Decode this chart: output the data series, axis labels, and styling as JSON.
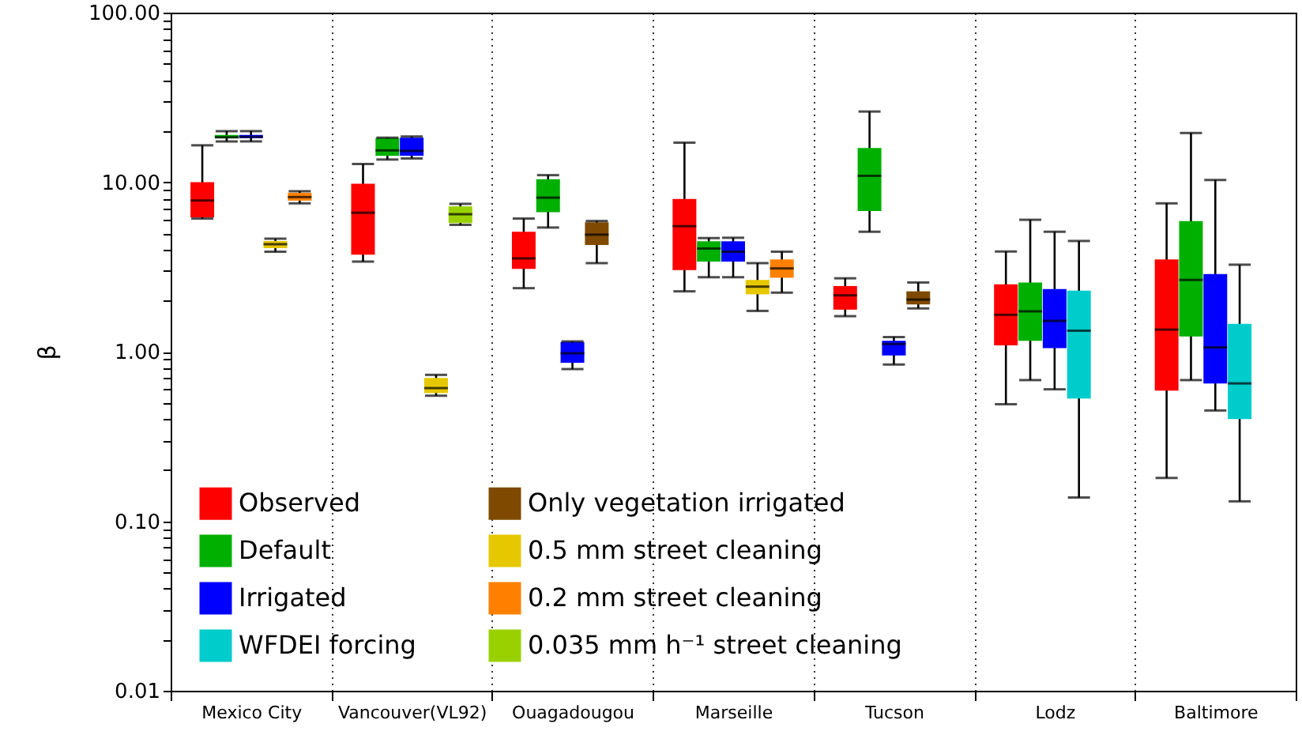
{
  "chart_data": {
    "type": "box",
    "ylabel": "β",
    "log": true,
    "grid": "x",
    "legend": "bottom left",
    "categories": [
      "Mexico City",
      "Vancouver(VL92)",
      "Ouagadougou",
      "Marseille",
      "Tucson",
      "Lodz",
      "Baltimore"
    ],
    "ylim": [
      0.01,
      100
    ],
    "yticks": [
      {
        "value": 0.01,
        "label": "0.01"
      },
      {
        "value": 0.02,
        "label": null
      },
      {
        "value": 0.03,
        "label": null
      },
      {
        "value": 0.04,
        "label": null
      },
      {
        "value": 0.05,
        "label": null
      },
      {
        "value": 0.06,
        "label": null
      },
      {
        "value": 0.07,
        "label": null
      },
      {
        "value": 0.08,
        "label": null
      },
      {
        "value": 0.09,
        "label": null
      },
      {
        "value": 0.1,
        "label": "0.10"
      },
      {
        "value": 0.2,
        "label": null
      },
      {
        "value": 0.3,
        "label": null
      },
      {
        "value": 0.4,
        "label": null
      },
      {
        "value": 0.5,
        "label": null
      },
      {
        "value": 0.6,
        "label": null
      },
      {
        "value": 0.7,
        "label": null
      },
      {
        "value": 0.8,
        "label": null
      },
      {
        "value": 0.9,
        "label": null
      },
      {
        "value": 1,
        "label": "1.00"
      },
      {
        "value": 2,
        "label": null
      },
      {
        "value": 3,
        "label": null
      },
      {
        "value": 4,
        "label": null
      },
      {
        "value": 5,
        "label": null
      },
      {
        "value": 6,
        "label": null
      },
      {
        "value": 7,
        "label": null
      },
      {
        "value": 8,
        "label": null
      },
      {
        "value": 9,
        "label": null
      },
      {
        "value": 10,
        "label": "10.00"
      },
      {
        "value": 20,
        "label": null
      },
      {
        "value": 30,
        "label": null
      },
      {
        "value": 40,
        "label": null
      },
      {
        "value": 50,
        "label": null
      },
      {
        "value": 60,
        "label": null
      },
      {
        "value": 70,
        "label": null
      },
      {
        "value": 80,
        "label": null
      },
      {
        "value": 90,
        "label": null
      },
      {
        "value": 100,
        "label": "100.00"
      }
    ],
    "series": [
      {
        "name": "Observed",
        "color": "#ff0000",
        "boxes": [
          {
            "low": 6.1,
            "q1": 6.2,
            "median": 7.8,
            "q3": 10.0,
            "high": 16.5
          },
          {
            "low": 3.4,
            "q1": 3.73,
            "median": 6.6,
            "q3": 9.8,
            "high": 12.8
          },
          {
            "low": 2.37,
            "q1": 3.08,
            "median": 3.55,
            "q3": 5.1,
            "high": 6.1
          },
          {
            "low": 2.27,
            "q1": 3.03,
            "median": 5.5,
            "q3": 7.95,
            "high": 17.1
          },
          {
            "low": 1.62,
            "q1": 1.77,
            "median": 2.15,
            "q3": 2.44,
            "high": 2.71
          },
          {
            "low": 0.49,
            "q1": 1.09,
            "median": 1.65,
            "q3": 2.5,
            "high": 3.9
          },
          {
            "low": 0.18,
            "q1": 0.59,
            "median": 1.35,
            "q3": 3.5,
            "high": 7.5
          }
        ]
      },
      {
        "name": "Default",
        "color": "#00b000",
        "boxes": [
          {
            "low": 17.4,
            "q1": 18.2,
            "median": 18.4,
            "q3": 19.0,
            "high": 20.0
          },
          {
            "low": 13.6,
            "q1": 14.3,
            "median": 15.4,
            "q3": 18.2,
            "high": 18.3
          },
          {
            "low": 5.4,
            "q1": 6.65,
            "median": 8.1,
            "q3": 10.4,
            "high": 11.0
          },
          {
            "low": 2.75,
            "q1": 3.4,
            "median": 4.06,
            "q3": 4.48,
            "high": 4.68
          },
          {
            "low": 5.1,
            "q1": 6.75,
            "median": 10.9,
            "q3": 15.9,
            "high": 26.1
          },
          {
            "low": 0.68,
            "q1": 1.16,
            "median": 1.73,
            "q3": 2.56,
            "high": 6.0
          },
          {
            "low": 0.68,
            "q1": 1.23,
            "median": 2.65,
            "q3": 5.9,
            "high": 19.5
          }
        ]
      },
      {
        "name": "Irrigated",
        "color": "#0000ff",
        "boxes": [
          {
            "low": 17.4,
            "q1": 18.2,
            "median": 18.5,
            "q3": 19.0,
            "high": 20.0
          },
          {
            "low": 13.8,
            "q1": 14.3,
            "median": 15.3,
            "q3": 18.3,
            "high": 18.6
          },
          {
            "low": 0.79,
            "q1": 0.86,
            "median": 0.98,
            "q3": 1.14,
            "high": 1.15
          },
          {
            "low": 2.75,
            "q1": 3.4,
            "median": 3.89,
            "q3": 4.48,
            "high": 4.7
          },
          {
            "low": 0.84,
            "q1": 0.95,
            "median": 1.11,
            "q3": 1.16,
            "high": 1.22
          },
          {
            "low": 0.6,
            "q1": 1.05,
            "median": 1.52,
            "q3": 2.34,
            "high": 5.1
          },
          {
            "low": 0.45,
            "q1": 0.65,
            "median": 1.06,
            "q3": 2.87,
            "high": 10.3
          }
        ]
      },
      {
        "name": "WFDEI forcing",
        "color": "#00cccc",
        "boxes": [
          null,
          null,
          null,
          null,
          null,
          {
            "low": 0.138,
            "q1": 0.53,
            "median": 1.33,
            "q3": 2.29,
            "high": 4.5
          },
          {
            "low": 0.131,
            "q1": 0.4,
            "median": 0.65,
            "q3": 1.46,
            "high": 3.26
          }
        ]
      },
      {
        "name": "Only vegetation irrigated",
        "color": "#7f4a00",
        "boxes": [
          null,
          null,
          {
            "low": 3.33,
            "q1": 4.26,
            "median": 4.9,
            "q3": 5.8,
            "high": 5.9
          },
          null,
          {
            "low": 1.8,
            "q1": 1.9,
            "median": 2.03,
            "q3": 2.27,
            "high": 2.56
          },
          null,
          null
        ]
      },
      {
        "name": "0.5 mm street cleaning",
        "color": "#e6c800",
        "boxes": [
          {
            "low": 3.89,
            "q1": 4.08,
            "median": 4.3,
            "q3": 4.5,
            "high": 4.64
          },
          {
            "low": 0.55,
            "q1": 0.57,
            "median": 0.61,
            "q3": 0.7,
            "high": 0.73
          },
          null,
          {
            "low": 1.74,
            "q1": 2.18,
            "median": 2.42,
            "q3": 2.65,
            "high": 3.33
          },
          null,
          null,
          null
        ]
      },
      {
        "name": "0.2 mm street cleaning",
        "color": "#ff8000",
        "boxes": [
          {
            "low": 7.5,
            "q1": 7.78,
            "median": 8.17,
            "q3": 8.65,
            "high": 8.84
          },
          null,
          null,
          {
            "low": 2.23,
            "q1": 2.73,
            "median": 3.1,
            "q3": 3.5,
            "high": 3.89
          },
          null,
          null,
          null
        ]
      },
      {
        "name": "0.035 mm h⁻¹ street cleaning",
        "color": "#99d100",
        "boxes": [
          null,
          {
            "low": 5.6,
            "q1": 5.74,
            "median": 6.47,
            "q3": 7.2,
            "high": 7.45
          },
          null,
          null,
          null,
          null,
          null
        ]
      }
    ]
  }
}
